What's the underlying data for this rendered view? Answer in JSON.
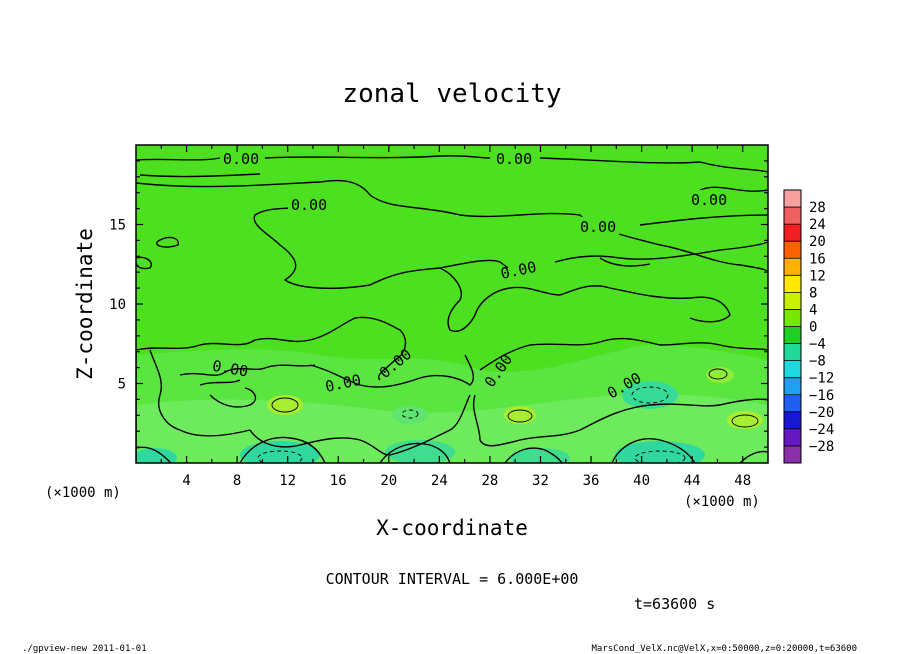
{
  "chart_data": {
    "type": "heatmap",
    "title": "zonal velocity",
    "xlabel": "X-coordinate",
    "ylabel": "Z-coordinate",
    "x_unit": "(×1000 m)",
    "y_unit": "(×1000 m)",
    "xlim": [
      0,
      50
    ],
    "ylim": [
      0,
      20
    ],
    "x_ticks": [
      "4",
      "8",
      "12",
      "16",
      "20",
      "24",
      "28",
      "32",
      "36",
      "40",
      "44",
      "48"
    ],
    "y_ticks": [
      "5",
      "10",
      "15"
    ],
    "colorbar": {
      "levels": [
        "28",
        "24",
        "20",
        "16",
        "12",
        "8",
        "4",
        "0",
        "−4",
        "−8",
        "−12",
        "−16",
        "−20",
        "−24",
        "−28"
      ],
      "colors": [
        "#f8a0a0",
        "#f06060",
        "#f02020",
        "#ff6000",
        "#ffb000",
        "#ffe800",
        "#c8f000",
        "#78e800",
        "#20d020",
        "#20d898",
        "#20d8e0",
        "#20a0f0",
        "#2060f0",
        "#1818d0",
        "#6818c0",
        "#8830a8"
      ]
    },
    "contour_labels": [
      "0.00",
      "0.00",
      "0.00",
      "0.00",
      "0.00",
      "0.00",
      "0.00",
      "0.00",
      "0.00",
      "0.00",
      "0.00"
    ],
    "contour_interval": "CONTOUR INTERVAL = 6.000E+00",
    "time_label": "t=63600 s",
    "footer_left": "./gpview-new  2011-01-01",
    "footer_right": "MarsCond_VelX.nc@VelX,x=0:50000,z=0:20000,t=63600",
    "background_value_color": "#4ce020"
  }
}
